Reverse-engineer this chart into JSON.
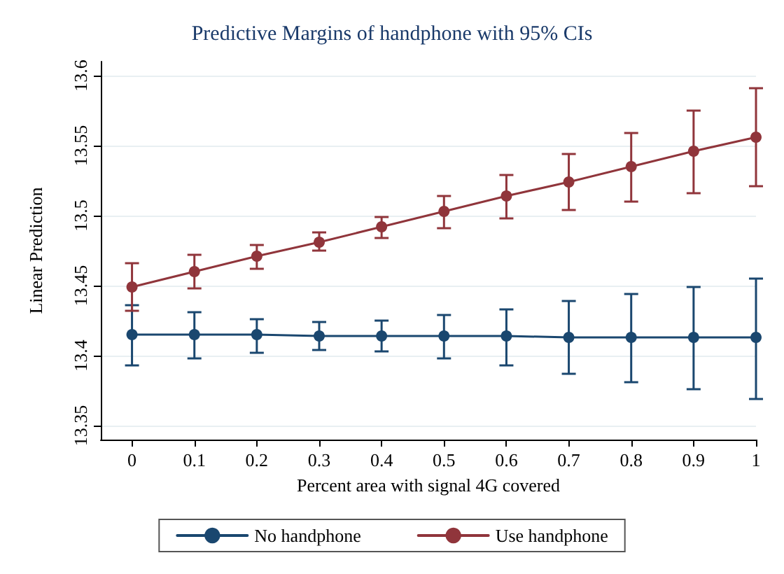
{
  "chart_data": {
    "type": "line",
    "title": "Predictive Margins of handphone with 95% CIs",
    "xlabel": "Percent area with signal 4G covered",
    "ylabel": "Linear Prediction",
    "x": [
      0,
      0.1,
      0.2,
      0.3,
      0.4,
      0.5,
      0.6,
      0.7,
      0.8,
      0.9,
      1
    ],
    "series": [
      {
        "name": "No handphone",
        "color": "#1a476f",
        "values": [
          13.415,
          13.415,
          13.415,
          13.414,
          13.414,
          13.414,
          13.414,
          13.413,
          13.413,
          13.413,
          13.413
        ],
        "errors": [
          [
            13.393,
            13.436
          ],
          [
            13.398,
            13.431
          ],
          [
            13.402,
            13.426
          ],
          [
            13.404,
            13.424
          ],
          [
            13.403,
            13.425
          ],
          [
            13.398,
            13.429
          ],
          [
            13.393,
            13.433
          ],
          [
            13.387,
            13.439
          ],
          [
            13.381,
            13.444
          ],
          [
            13.376,
            13.449
          ],
          [
            13.369,
            13.455
          ]
        ]
      },
      {
        "name": "Use handphone",
        "color": "#90353b",
        "values": [
          13.449,
          13.46,
          13.471,
          13.481,
          13.492,
          13.503,
          13.514,
          13.524,
          13.535,
          13.546,
          13.556
        ],
        "errors": [
          [
            13.432,
            13.466
          ],
          [
            13.448,
            13.472
          ],
          [
            13.462,
            13.479
          ],
          [
            13.475,
            13.488
          ],
          [
            13.484,
            13.499
          ],
          [
            13.491,
            13.514
          ],
          [
            13.498,
            13.529
          ],
          [
            13.504,
            13.544
          ],
          [
            13.51,
            13.559
          ],
          [
            13.516,
            13.575
          ],
          [
            13.521,
            13.591
          ]
        ]
      }
    ],
    "xlim": [
      -0.05,
      1
    ],
    "xticks": [
      0,
      0.1,
      0.2,
      0.3,
      0.4,
      0.5,
      0.6,
      0.7,
      0.8,
      0.9,
      1
    ],
    "ylim": [
      13.34,
      13.61
    ],
    "yticks": [
      13.35,
      13.4,
      13.45,
      13.5,
      13.55,
      13.6
    ],
    "grid": "y",
    "legend": "bottom",
    "marker": "circle",
    "line_style": "solid"
  }
}
